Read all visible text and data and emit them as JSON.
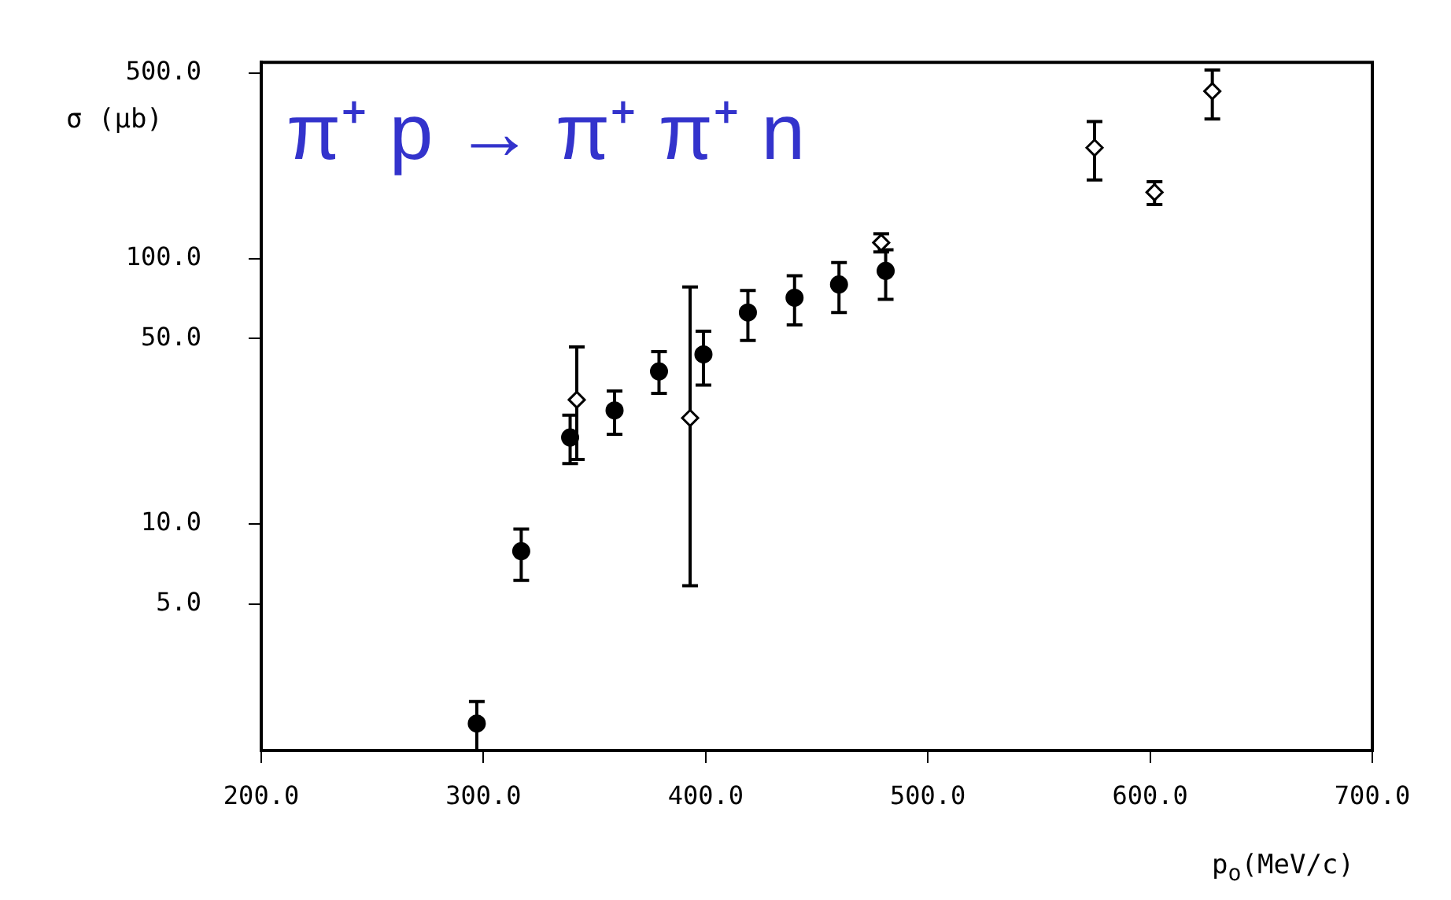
{
  "chart_data": {
    "type": "scatter",
    "xlabel": "p$_{o}$(MeV/c)",
    "ylabel": "σ (μb)",
    "annotations": [
      "π⁺ p → π⁺ π⁺ n"
    ],
    "log": "y",
    "grid": false,
    "legend": false,
    "xlim": [
      200,
      700
    ],
    "xticks": [
      {
        "value": 200,
        "label": "200.0"
      },
      {
        "value": 300,
        "label": "300.0"
      },
      {
        "value": 400,
        "label": "400.0"
      },
      {
        "value": 500,
        "label": "500.0"
      },
      {
        "value": 600,
        "label": "600.0"
      },
      {
        "value": 700,
        "label": "700.0"
      }
    ],
    "ylim": [
      1.4,
      550
    ],
    "yticks": [
      {
        "value": 5,
        "label": "5.0"
      },
      {
        "value": 10,
        "label": "10.0"
      },
      {
        "value": 50,
        "label": "50.0"
      },
      {
        "value": 100,
        "label": "100.0"
      },
      {
        "value": 500,
        "label": "500.0"
      }
    ],
    "series": [
      {
        "color": "#000000",
        "marker": "circle",
        "x": [
          297,
          317,
          339,
          359,
          379,
          399,
          419,
          440,
          460,
          481
        ],
        "values": [
          1.77,
          7.9,
          21.2,
          26.8,
          37.6,
          43.6,
          62.7,
          71.3,
          80,
          90
        ],
        "errors": [
          [
            1.4,
            2.14
          ],
          [
            6.13,
            9.57
          ],
          [
            16.9,
            25.7
          ],
          [
            21.8,
            31.7
          ],
          [
            31.1,
            44.6
          ],
          [
            33.4,
            53.3
          ],
          [
            49.2,
            75.9
          ],
          [
            56.3,
            86.3
          ],
          [
            62.7,
            96.7
          ],
          [
            70.3,
            108
          ]
        ]
      },
      {
        "color": "#000000",
        "marker": "diamond",
        "x": [
          342,
          393,
          479,
          575,
          602,
          628
        ],
        "values": [
          29.4,
          25.1,
          115,
          262,
          178,
          428
        ],
        "errors": [
          [
            17.5,
            46.5
          ],
          [
            5.85,
            78.2
          ],
          [
            106,
            124
          ],
          [
            198,
            329
          ],
          [
            160,
            195
          ],
          [
            336,
            514
          ]
        ]
      }
    ]
  }
}
